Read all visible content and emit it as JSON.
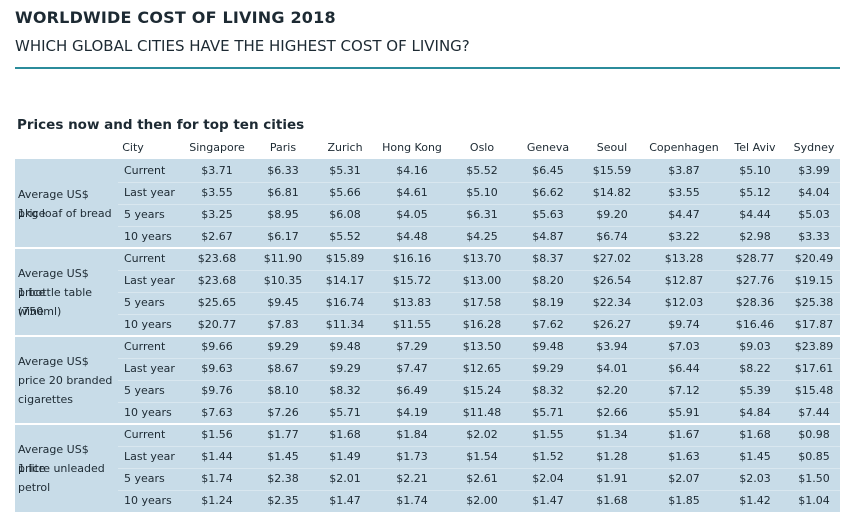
{
  "header": {
    "title": "WORLDWIDE COST OF LIVING 2018",
    "subtitle": "WHICH GLOBAL CITIES HAVE THE HIGHEST COST OF LIVING?"
  },
  "section_title": "Prices now and then for top ten cities",
  "table": {
    "city_header": "City",
    "columns": [
      "Singapore",
      "Paris",
      "Zurich",
      "Hong Kong",
      "Oslo",
      "Geneva",
      "Seoul",
      "Copenhagen",
      "Tel Aviv",
      "Sydney"
    ],
    "groups": [
      {
        "label_lines": [
          "Average US$ price",
          "1kg loaf of bread"
        ],
        "rows": [
          {
            "period": "Current",
            "values": [
              "$3.71",
              "$6.33",
              "$5.31",
              "$4.16",
              "$5.52",
              "$6.45",
              "$15.59",
              "$3.87",
              "$5.10",
              "$3.99"
            ]
          },
          {
            "period": "Last year",
            "values": [
              "$3.55",
              "$6.81",
              "$5.66",
              "$4.61",
              "$5.10",
              "$6.62",
              "$14.82",
              "$3.55",
              "$5.12",
              "$4.04"
            ]
          },
          {
            "period": "5 years",
            "values": [
              "$3.25",
              "$8.95",
              "$6.08",
              "$4.05",
              "$6.31",
              "$5.63",
              "$9.20",
              "$4.47",
              "$4.44",
              "$5.03"
            ]
          },
          {
            "period": "10 years",
            "values": [
              "$2.67",
              "$6.17",
              "$5.52",
              "$4.48",
              "$4.25",
              "$4.87",
              "$6.74",
              "$3.22",
              "$2.98",
              "$3.33"
            ]
          }
        ]
      },
      {
        "label_lines": [
          "Average US$ price",
          "1 bottle table wine",
          "(750ml)"
        ],
        "rows": [
          {
            "period": "Current",
            "values": [
              "$23.68",
              "$11.90",
              "$15.89",
              "$16.16",
              "$13.70",
              "$8.37",
              "$27.02",
              "$13.28",
              "$28.77",
              "$20.49"
            ]
          },
          {
            "period": "Last year",
            "values": [
              "$23.68",
              "$10.35",
              "$14.17",
              "$15.72",
              "$13.00",
              "$8.20",
              "$26.54",
              "$12.87",
              "$27.76",
              "$19.15"
            ]
          },
          {
            "period": "5 years",
            "values": [
              "$25.65",
              "$9.45",
              "$16.74",
              "$13.83",
              "$17.58",
              "$8.19",
              "$22.34",
              "$12.03",
              "$28.36",
              "$25.38"
            ]
          },
          {
            "period": "10 years",
            "values": [
              "$20.77",
              "$7.83",
              "$11.34",
              "$11.55",
              "$16.28",
              "$7.62",
              "$26.27",
              "$9.74",
              "$16.46",
              "$17.87"
            ]
          }
        ]
      },
      {
        "label_lines": [
          "Average US$",
          "price 20 branded",
          "cigarettes"
        ],
        "rows": [
          {
            "period": "Current",
            "values": [
              "$9.66",
              "$9.29",
              "$9.48",
              "$7.29",
              "$13.50",
              "$9.48",
              "$3.94",
              "$7.03",
              "$9.03",
              "$23.89"
            ]
          },
          {
            "period": "Last year",
            "values": [
              "$9.63",
              "$8.67",
              "$9.29",
              "$7.47",
              "$12.65",
              "$9.29",
              "$4.01",
              "$6.44",
              "$8.22",
              "$17.61"
            ]
          },
          {
            "period": "5 years",
            "values": [
              "$9.76",
              "$8.10",
              "$8.32",
              "$6.49",
              "$15.24",
              "$8.32",
              "$2.20",
              "$7.12",
              "$5.39",
              "$15.48"
            ]
          },
          {
            "period": "10 years",
            "values": [
              "$7.63",
              "$7.26",
              "$5.71",
              "$4.19",
              "$11.48",
              "$5.71",
              "$2.66",
              "$5.91",
              "$4.84",
              "$7.44"
            ]
          }
        ]
      },
      {
        "label_lines": [
          "Average US$ price",
          "1 litre unleaded",
          "petrol"
        ],
        "rows": [
          {
            "period": "Current",
            "values": [
              "$1.56",
              "$1.77",
              "$1.68",
              "$1.84",
              "$2.02",
              "$1.55",
              "$1.34",
              "$1.67",
              "$1.68",
              "$0.98"
            ]
          },
          {
            "period": "Last year",
            "values": [
              "$1.44",
              "$1.45",
              "$1.49",
              "$1.73",
              "$1.54",
              "$1.52",
              "$1.28",
              "$1.63",
              "$1.45",
              "$0.85"
            ]
          },
          {
            "period": "5 years",
            "values": [
              "$1.74",
              "$2.38",
              "$2.01",
              "$2.21",
              "$2.61",
              "$2.04",
              "$1.91",
              "$2.07",
              "$2.03",
              "$1.50"
            ]
          },
          {
            "period": "10 years",
            "values": [
              "$1.24",
              "$2.35",
              "$1.47",
              "$1.74",
              "$2.00",
              "$1.47",
              "$1.68",
              "$1.85",
              "$1.42",
              "$1.04"
            ]
          }
        ]
      }
    ]
  }
}
